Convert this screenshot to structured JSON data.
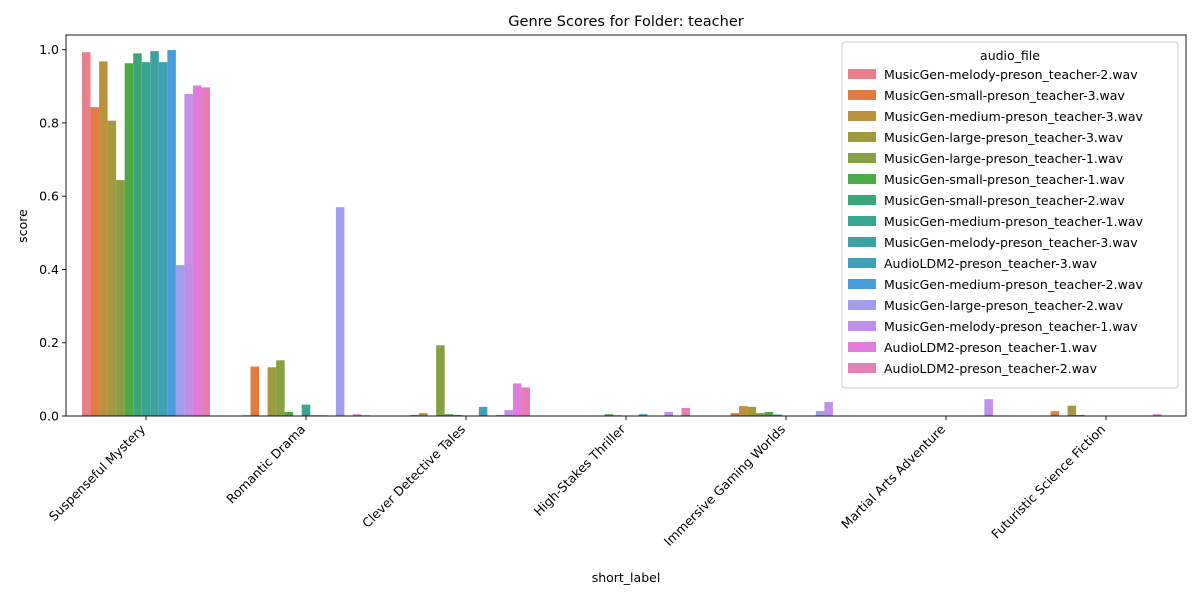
{
  "chart_data": {
    "type": "bar",
    "title": "Genre Scores for Folder: teacher",
    "xlabel": "short_label",
    "ylabel": "score",
    "ylim": [
      0,
      1.04
    ],
    "yticks": [
      0.0,
      0.2,
      0.4,
      0.6,
      0.8,
      1.0
    ],
    "ytick_labels": [
      "0.0",
      "0.2",
      "0.4",
      "0.6",
      "0.8",
      "1.0"
    ],
    "grid": false,
    "legend": {
      "title": "audio_file",
      "placement": "top-right"
    },
    "categories": [
      "Suspenseful Mystery",
      "Romantic Drama",
      "Clever Detective Tales",
      "High-Stakes Thriller",
      "Immersive Gaming Worlds",
      "Martial Arts Adventure",
      "Futuristic Science Fiction"
    ],
    "series": [
      {
        "name": "MusicGen-melody-preson_teacher-2.wav",
        "color": "#e8808b",
        "values": [
          0.993,
          0.002,
          0.001,
          0.0,
          0.001,
          0.0,
          0.001
        ]
      },
      {
        "name": "MusicGen-small-preson_teacher-3.wav",
        "color": "#de7d3f",
        "values": [
          0.843,
          0.135,
          0.003,
          0.0,
          0.008,
          0.0,
          0.013
        ]
      },
      {
        "name": "MusicGen-medium-preson_teacher-3.wav",
        "color": "#b99240",
        "values": [
          0.968,
          0.001,
          0.008,
          0.0,
          0.027,
          0.0,
          0.001
        ]
      },
      {
        "name": "MusicGen-large-preson_teacher-3.wav",
        "color": "#a19a3f",
        "values": [
          0.806,
          0.133,
          0.001,
          0.0,
          0.025,
          0.0,
          0.028
        ]
      },
      {
        "name": "MusicGen-large-preson_teacher-1.wav",
        "color": "#87a043",
        "values": [
          0.644,
          0.152,
          0.193,
          0.0,
          0.008,
          0.0,
          0.003
        ]
      },
      {
        "name": "MusicGen-small-preson_teacher-1.wav",
        "color": "#4ea947",
        "values": [
          0.963,
          0.011,
          0.005,
          0.005,
          0.011,
          0.0,
          0.001
        ]
      },
      {
        "name": "MusicGen-small-preson_teacher-2.wav",
        "color": "#3aa77a",
        "values": [
          0.99,
          0.001,
          0.003,
          0.002,
          0.004,
          0.0,
          0.0
        ]
      },
      {
        "name": "MusicGen-medium-preson_teacher-1.wav",
        "color": "#3ba593",
        "values": [
          0.966,
          0.031,
          0.001,
          0.0,
          0.001,
          0.0,
          0.0
        ]
      },
      {
        "name": "MusicGen-melody-preson_teacher-3.wav",
        "color": "#3da2a2",
        "values": [
          0.996,
          0.002,
          0.001,
          0.0,
          0.0,
          0.0,
          0.0
        ]
      },
      {
        "name": "AudioLDM2-preson_teacher-3.wav",
        "color": "#3fa0b8",
        "values": [
          0.966,
          0.002,
          0.025,
          0.005,
          0.0,
          0.0,
          0.0
        ]
      },
      {
        "name": "MusicGen-medium-preson_teacher-2.wav",
        "color": "#4a9ddb",
        "values": [
          0.999,
          0.001,
          0.001,
          0.0,
          0.001,
          0.0,
          0.0
        ]
      },
      {
        "name": "MusicGen-large-preson_teacher-2.wav",
        "color": "#a39ded",
        "values": [
          0.412,
          0.57,
          0.003,
          0.0,
          0.014,
          0.0,
          0.0
        ]
      },
      {
        "name": "MusicGen-melody-preson_teacher-1.wav",
        "color": "#c38ee9",
        "values": [
          0.879,
          0.001,
          0.016,
          0.011,
          0.038,
          0.046,
          0.0
        ]
      },
      {
        "name": "AudioLDM2-preson_teacher-1.wav",
        "color": "#e17bdc",
        "values": [
          0.902,
          0.005,
          0.089,
          0.001,
          0.001,
          0.001,
          0.005
        ]
      },
      {
        "name": "AudioLDM2-preson_teacher-2.wav",
        "color": "#e57fb5",
        "values": [
          0.897,
          0.002,
          0.078,
          0.022,
          0.001,
          0.001,
          0.001
        ]
      }
    ]
  }
}
